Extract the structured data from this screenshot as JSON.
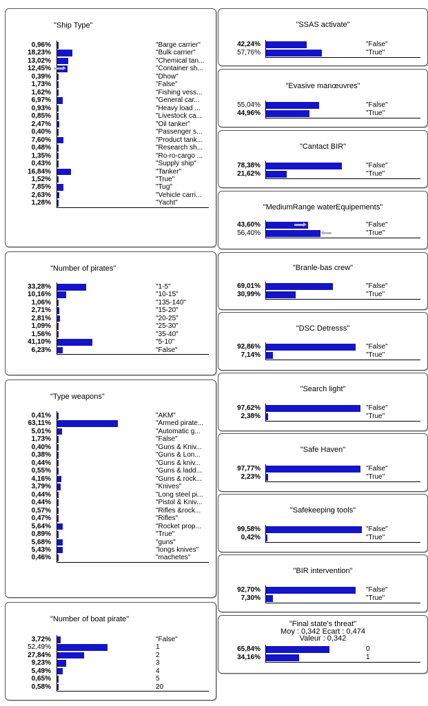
{
  "colors": {
    "bar": "#1414c8",
    "arrow": "#b8b8b8",
    "border": "#555555"
  },
  "nodes": [
    {
      "id": "ship-type",
      "title": "\"Ship Type\"",
      "states": [
        {
          "pct": "0,96%",
          "value": 0.96,
          "bold": true,
          "label": "\"Barge carrier\""
        },
        {
          "pct": "18,23%",
          "value": 18.23,
          "bold": true,
          "label": "\"Bulk carrier\""
        },
        {
          "pct": "13,02%",
          "value": 13.02,
          "bold": true,
          "label": "\"Chemical tan..."
        },
        {
          "pct": "12,45%",
          "value": 12.45,
          "bold": true,
          "label": "\"Container sh...",
          "arrow": "right"
        },
        {
          "pct": "0,39%",
          "value": 0.39,
          "bold": true,
          "label": "\"Dhow\""
        },
        {
          "pct": "1,73%",
          "value": 1.73,
          "bold": true,
          "label": "\"False\""
        },
        {
          "pct": "1,62%",
          "value": 1.62,
          "bold": true,
          "label": "\"Fishing vess..."
        },
        {
          "pct": "6,97%",
          "value": 6.97,
          "bold": true,
          "label": "\"General car..."
        },
        {
          "pct": "0,93%",
          "value": 0.93,
          "bold": true,
          "label": "\"Heavy load ..."
        },
        {
          "pct": "0,85%",
          "value": 0.85,
          "bold": true,
          "label": "\"Livestock ca..."
        },
        {
          "pct": "2,47%",
          "value": 2.47,
          "bold": true,
          "label": "\"Oil tanker\""
        },
        {
          "pct": "0,40%",
          "value": 0.4,
          "bold": true,
          "label": "\"Passenger s..."
        },
        {
          "pct": "7,60%",
          "value": 7.6,
          "bold": true,
          "label": "\"Product tank..."
        },
        {
          "pct": "0,48%",
          "value": 0.48,
          "bold": true,
          "label": "\"Research sh..."
        },
        {
          "pct": "1,35%",
          "value": 1.35,
          "bold": true,
          "label": "\"Ro-ro-cargo ..."
        },
        {
          "pct": "0,43%",
          "value": 0.43,
          "bold": true,
          "label": "\"Supply ship\""
        },
        {
          "pct": "16,84%",
          "value": 16.84,
          "bold": true,
          "label": "\"Tanker\""
        },
        {
          "pct": "1,52%",
          "value": 1.52,
          "bold": true,
          "label": "\"True\""
        },
        {
          "pct": "7,85%",
          "value": 7.85,
          "bold": true,
          "label": "\"Tug\""
        },
        {
          "pct": "2,63%",
          "value": 2.63,
          "bold": true,
          "label": "\"Vehicle carri..."
        },
        {
          "pct": "1,28%",
          "value": 1.28,
          "bold": true,
          "label": "\"Yacht\""
        }
      ]
    },
    {
      "id": "number-of-pirates",
      "title": "\"Number of pirates\"",
      "states": [
        {
          "pct": "33,28%",
          "value": 33.28,
          "bold": true,
          "label": "\"1-5\""
        },
        {
          "pct": "10,16%",
          "value": 10.16,
          "bold": true,
          "label": "\"10-15\""
        },
        {
          "pct": "1,06%",
          "value": 1.06,
          "bold": true,
          "label": "\"135-140\""
        },
        {
          "pct": "2,71%",
          "value": 2.71,
          "bold": true,
          "label": "\"15-20\""
        },
        {
          "pct": "2,81%",
          "value": 2.81,
          "bold": true,
          "label": "\"20-25\""
        },
        {
          "pct": "1,09%",
          "value": 1.09,
          "bold": true,
          "label": "\"25-30\""
        },
        {
          "pct": "1,56%",
          "value": 1.56,
          "bold": true,
          "label": "\"35-40\""
        },
        {
          "pct": "41,10%",
          "value": 41.1,
          "bold": true,
          "label": "\"5-10\""
        },
        {
          "pct": "6,23%",
          "value": 6.23,
          "bold": true,
          "label": "\"False\""
        }
      ]
    },
    {
      "id": "type-weapons",
      "title": "\"Type weapons\"",
      "states": [
        {
          "pct": "0,41%",
          "value": 0.41,
          "bold": true,
          "label": "\"AKM\""
        },
        {
          "pct": "63,11%",
          "value": 63.11,
          "bold": true,
          "label": "\"Armed pirate..."
        },
        {
          "pct": "5,01%",
          "value": 5.01,
          "bold": true,
          "label": "\"Automatic g..."
        },
        {
          "pct": "1,73%",
          "value": 1.73,
          "bold": true,
          "label": "\"False\""
        },
        {
          "pct": "0,40%",
          "value": 0.4,
          "bold": true,
          "label": "\"Guns & Kniv..."
        },
        {
          "pct": "0,38%",
          "value": 0.38,
          "bold": true,
          "label": "\"Guns & Lon..."
        },
        {
          "pct": "0,44%",
          "value": 0.44,
          "bold": true,
          "label": "\"Guns & kniv..."
        },
        {
          "pct": "0,55%",
          "value": 0.55,
          "bold": true,
          "label": "\"Guns & ladd..."
        },
        {
          "pct": "4,16%",
          "value": 4.16,
          "bold": true,
          "label": "\"Guns & rock..."
        },
        {
          "pct": "3,79%",
          "value": 3.79,
          "bold": true,
          "label": "\"Knives\""
        },
        {
          "pct": "0,44%",
          "value": 0.44,
          "bold": true,
          "label": "\"Long steel pi..."
        },
        {
          "pct": "0,44%",
          "value": 0.44,
          "bold": true,
          "label": "\"Pistol & Kniv..."
        },
        {
          "pct": "0,57%",
          "value": 0.57,
          "bold": true,
          "label": "\"Rifles &rock..."
        },
        {
          "pct": "0,47%",
          "value": 0.47,
          "bold": true,
          "label": "\"Rifles\""
        },
        {
          "pct": "5,64%",
          "value": 5.64,
          "bold": true,
          "label": "\"Rocket prop..."
        },
        {
          "pct": "0,89%",
          "value": 0.89,
          "bold": true,
          "label": "\"True\""
        },
        {
          "pct": "5,68%",
          "value": 5.68,
          "bold": true,
          "label": "\"guns\""
        },
        {
          "pct": "5,43%",
          "value": 5.43,
          "bold": true,
          "label": "\"longs knives\""
        },
        {
          "pct": "0,46%",
          "value": 0.46,
          "bold": true,
          "label": "\"machetes\""
        }
      ]
    },
    {
      "id": "number-of-boat-pirate",
      "title": "\"Number of boat pirate\"",
      "states": [
        {
          "pct": "3,72%",
          "value": 3.72,
          "bold": true,
          "label": "\"False\""
        },
        {
          "pct": "52,49%",
          "value": 52.49,
          "bold": false,
          "label": "1"
        },
        {
          "pct": "27,84%",
          "value": 27.84,
          "bold": true,
          "label": "2"
        },
        {
          "pct": "9,23%",
          "value": 9.23,
          "bold": true,
          "label": "3"
        },
        {
          "pct": "5,49%",
          "value": 5.49,
          "bold": true,
          "label": "4"
        },
        {
          "pct": "0,65%",
          "value": 0.65,
          "bold": true,
          "label": "5"
        },
        {
          "pct": "0,58%",
          "value": 0.58,
          "bold": true,
          "label": "20"
        }
      ]
    },
    {
      "id": "ssas-activate",
      "title": "\"SSAS activate\"",
      "states": [
        {
          "pct": "42,24%",
          "value": 42.24,
          "bold": true,
          "label": "\"False\""
        },
        {
          "pct": "57,76%",
          "value": 57.76,
          "bold": false,
          "label": "\"True\""
        }
      ]
    },
    {
      "id": "evasive-manoeuvres",
      "title": "\"Evasive manœuvres\"",
      "states": [
        {
          "pct": "55,04%",
          "value": 55.04,
          "bold": false,
          "label": "\"False\""
        },
        {
          "pct": "44,96%",
          "value": 44.96,
          "bold": true,
          "label": "\"True\""
        }
      ]
    },
    {
      "id": "cantact-bir",
      "title": "\"Cantact BIR\"",
      "states": [
        {
          "pct": "78,38%",
          "value": 78.38,
          "bold": true,
          "label": "\"False\""
        },
        {
          "pct": "21,62%",
          "value": 21.62,
          "bold": true,
          "label": "\"True\""
        }
      ]
    },
    {
      "id": "mediumrange-water-equipements",
      "title": "\"MediumRange waterEquipements\"",
      "states": [
        {
          "pct": "43,60%",
          "value": 43.6,
          "bold": true,
          "label": "\"False\"",
          "arrow": "right"
        },
        {
          "pct": "56,40%",
          "value": 56.4,
          "bold": false,
          "label": "\"True\"",
          "arrow": "left"
        }
      ]
    },
    {
      "id": "branle-bas-crew",
      "title": "\"Branle-bas crew\"",
      "states": [
        {
          "pct": "69,01%",
          "value": 69.01,
          "bold": true,
          "label": "\"False\""
        },
        {
          "pct": "30,99%",
          "value": 30.99,
          "bold": true,
          "label": "\"True\""
        }
      ]
    },
    {
      "id": "dsc-detresss",
      "title": "\"DSC Detresss\"",
      "states": [
        {
          "pct": "92,86%",
          "value": 92.86,
          "bold": true,
          "label": "\"False\""
        },
        {
          "pct": "7,14%",
          "value": 7.14,
          "bold": true,
          "label": "\"True\""
        }
      ]
    },
    {
      "id": "search-light",
      "title": "\"Search light\"",
      "states": [
        {
          "pct": "97,62%",
          "value": 97.62,
          "bold": true,
          "label": "\"False\""
        },
        {
          "pct": "2,38%",
          "value": 2.38,
          "bold": true,
          "label": "\"True\""
        }
      ]
    },
    {
      "id": "safe-haven",
      "title": "\"Safe Haven\"",
      "states": [
        {
          "pct": "97,77%",
          "value": 97.77,
          "bold": true,
          "label": "\"False\""
        },
        {
          "pct": "2,23%",
          "value": 2.23,
          "bold": true,
          "label": "\"True\""
        }
      ]
    },
    {
      "id": "safekeeping-tools",
      "title": "\"Safekeeping tools\"",
      "states": [
        {
          "pct": "99,58%",
          "value": 99.58,
          "bold": true,
          "label": "\"False\""
        },
        {
          "pct": "0,42%",
          "value": 0.42,
          "bold": true,
          "label": "\"True\""
        }
      ]
    },
    {
      "id": "bir-intervention",
      "title": "\"BIR intervention\"",
      "states": [
        {
          "pct": "92,70%",
          "value": 92.7,
          "bold": true,
          "label": "\"False\""
        },
        {
          "pct": "7,30%",
          "value": 7.3,
          "bold": true,
          "label": "\"True\""
        }
      ]
    },
    {
      "id": "final-states-threat",
      "title": "\"Final state's threat\"",
      "subtitle": [
        "Moy : 0,342 Ecart : 0,474",
        "Valeur : 0,342"
      ],
      "states": [
        {
          "pct": "65,84%",
          "value": 65.84,
          "bold": true,
          "label": "0"
        },
        {
          "pct": "34,16%",
          "value": 34.16,
          "bold": true,
          "label": "1"
        }
      ]
    }
  ]
}
